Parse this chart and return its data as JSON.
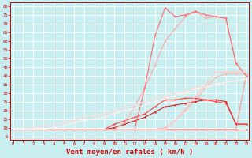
{
  "background_color": "#c8eef0",
  "grid_color": "#ffffff",
  "xlabel": "Vent moyen/en rafales ( km/h )",
  "xlabel_color": "#cc0000",
  "xlabel_fontsize": 6.5,
  "xtick_labels": [
    "0",
    "1",
    "2",
    "3",
    "4",
    "5",
    "6",
    "7",
    "8",
    "9",
    "10",
    "11",
    "12",
    "13",
    "14",
    "15",
    "16",
    "17",
    "18",
    "19",
    "20",
    "21",
    "22",
    "23"
  ],
  "ytick_vals": [
    5,
    10,
    15,
    20,
    25,
    30,
    35,
    40,
    45,
    50,
    55,
    60,
    65,
    70,
    75,
    80
  ],
  "ytick_labels": [
    "5",
    "10",
    "15",
    "20",
    "25",
    "30",
    "35",
    "40",
    "45",
    "50",
    "55",
    "60",
    "65",
    "70",
    "75",
    "80"
  ],
  "ylim": [
    3,
    82
  ],
  "xlim": [
    -0.3,
    23.3
  ],
  "series": [
    {
      "name": "flat_bottom",
      "color": "#ff4444",
      "alpha": 1.0,
      "lw": 0.7,
      "marker": "D",
      "markersize": 1.5,
      "data_x": [
        0,
        1,
        2,
        3,
        4,
        5,
        6,
        7,
        8,
        9,
        10,
        11,
        12,
        13,
        14,
        15,
        16,
        17,
        18,
        19,
        20,
        21,
        22,
        23
      ],
      "data_y": [
        9,
        9,
        9,
        9,
        9,
        9,
        9,
        9,
        9,
        9,
        9,
        9,
        9,
        9,
        9,
        9,
        9,
        9,
        9,
        9,
        9,
        9,
        9,
        9
      ]
    },
    {
      "name": "line_diagonal1",
      "color": "#ff9999",
      "alpha": 1.0,
      "lw": 0.8,
      "marker": "D",
      "markersize": 1.5,
      "data_x": [
        0,
        1,
        2,
        3,
        4,
        5,
        6,
        7,
        8,
        9,
        10,
        11,
        12,
        13,
        14,
        15,
        16,
        17,
        18,
        19,
        20,
        21,
        22,
        23
      ],
      "data_y": [
        9,
        9,
        9,
        9,
        9,
        9,
        9,
        9,
        9,
        9,
        9,
        9,
        9,
        9,
        9,
        9,
        9,
        9,
        9,
        9,
        9,
        9,
        9,
        40
      ]
    },
    {
      "name": "line_diagonal2",
      "color": "#ffbbbb",
      "alpha": 1.0,
      "lw": 0.9,
      "marker": "D",
      "markersize": 1.5,
      "data_x": [
        0,
        1,
        2,
        3,
        4,
        5,
        6,
        7,
        8,
        9,
        10,
        11,
        12,
        13,
        14,
        15,
        16,
        17,
        18,
        19,
        20,
        21,
        22,
        23
      ],
      "data_y": [
        9,
        9,
        9,
        9,
        9,
        9,
        9,
        9,
        9,
        9,
        9,
        9,
        9,
        9,
        9,
        10,
        14,
        20,
        26,
        33,
        39,
        41,
        41,
        41
      ]
    },
    {
      "name": "line_mid1",
      "color": "#dd2222",
      "alpha": 1.0,
      "lw": 0.8,
      "marker": "D",
      "markersize": 1.5,
      "data_x": [
        0,
        1,
        2,
        3,
        4,
        5,
        6,
        7,
        8,
        9,
        10,
        11,
        12,
        13,
        14,
        15,
        16,
        17,
        18,
        19,
        20,
        21,
        22,
        23
      ],
      "data_y": [
        9,
        9,
        9,
        9,
        9,
        9,
        9,
        9,
        9,
        9,
        10,
        12,
        14,
        16,
        19,
        22,
        23,
        24,
        25,
        26,
        26,
        25,
        12,
        12
      ]
    },
    {
      "name": "line_mid2",
      "color": "#ff4444",
      "alpha": 1.0,
      "lw": 0.8,
      "marker": "D",
      "markersize": 1.5,
      "data_x": [
        0,
        1,
        2,
        3,
        4,
        5,
        6,
        7,
        8,
        9,
        10,
        11,
        12,
        13,
        14,
        15,
        16,
        17,
        18,
        19,
        20,
        21,
        22,
        23
      ],
      "data_y": [
        9,
        9,
        9,
        9,
        9,
        9,
        9,
        9,
        9,
        9,
        12,
        14,
        16,
        18,
        22,
        26,
        26,
        27,
        27,
        26,
        25,
        24,
        12,
        12
      ]
    },
    {
      "name": "line_upper1",
      "color": "#ffaaaa",
      "alpha": 1.0,
      "lw": 0.8,
      "marker": "D",
      "markersize": 1.5,
      "data_x": [
        0,
        1,
        2,
        3,
        4,
        5,
        6,
        7,
        8,
        9,
        10,
        11,
        12,
        13,
        14,
        15,
        16,
        17,
        18,
        19,
        20,
        21,
        22,
        23
      ],
      "data_y": [
        9,
        9,
        9,
        9,
        9,
        9,
        9,
        9,
        9,
        9,
        9,
        13,
        22,
        33,
        46,
        60,
        67,
        74,
        77,
        73,
        74,
        73,
        47,
        40
      ]
    },
    {
      "name": "line_upper2",
      "color": "#ff6666",
      "alpha": 0.85,
      "lw": 0.9,
      "marker": "D",
      "markersize": 1.5,
      "data_x": [
        0,
        1,
        2,
        3,
        4,
        5,
        6,
        7,
        8,
        9,
        10,
        11,
        12,
        13,
        14,
        15,
        16,
        17,
        18,
        19,
        20,
        21,
        22,
        23
      ],
      "data_y": [
        9,
        9,
        9,
        9,
        9,
        9,
        9,
        9,
        9,
        9,
        9,
        9,
        9,
        33,
        63,
        79,
        74,
        75,
        77,
        75,
        74,
        73,
        47,
        40
      ]
    },
    {
      "name": "line_straight_top",
      "color": "#ffcccc",
      "alpha": 1.0,
      "lw": 1.0,
      "marker": "D",
      "markersize": 1.5,
      "data_x": [
        0,
        1,
        2,
        3,
        4,
        5,
        6,
        7,
        8,
        9,
        10,
        11,
        12,
        13,
        14,
        15,
        16,
        17,
        18,
        19,
        20,
        21,
        22,
        23
      ],
      "data_y": [
        9,
        9,
        9,
        9,
        9,
        9,
        9,
        9,
        9,
        9,
        9,
        9,
        9,
        9,
        9,
        9,
        14,
        21,
        28,
        35,
        42,
        42,
        42,
        42
      ]
    },
    {
      "name": "line_straight_diag",
      "color": "#ffdddd",
      "alpha": 1.0,
      "lw": 0.9,
      "marker": "D",
      "markersize": 1.5,
      "data_x": [
        0,
        1,
        2,
        3,
        4,
        5,
        6,
        7,
        8,
        9,
        10,
        11,
        12,
        13,
        14,
        15,
        16,
        17,
        18,
        19,
        20,
        21,
        22,
        23
      ],
      "data_y": [
        9,
        9,
        10,
        11,
        12,
        13,
        14,
        16,
        17,
        18,
        20,
        22,
        23,
        25,
        27,
        28,
        30,
        31,
        33,
        34,
        35,
        36,
        37,
        38
      ]
    },
    {
      "name": "line_straight_diag2",
      "color": "#ffeeee",
      "alpha": 1.0,
      "lw": 0.9,
      "marker": "D",
      "markersize": 1.5,
      "data_x": [
        0,
        1,
        2,
        3,
        4,
        5,
        6,
        7,
        8,
        9,
        10,
        11,
        12,
        13,
        14,
        15,
        16,
        17,
        18,
        19,
        20,
        21,
        22,
        23
      ],
      "data_y": [
        9,
        9,
        9,
        9,
        10,
        11,
        13,
        14,
        15,
        16,
        18,
        20,
        21,
        23,
        25,
        27,
        28,
        30,
        32,
        33,
        35,
        36,
        37,
        38
      ]
    }
  ]
}
